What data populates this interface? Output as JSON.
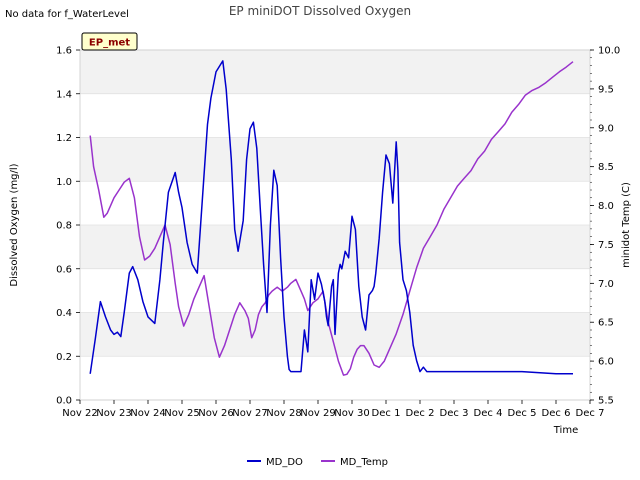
{
  "note": "No data for f_WaterLevel",
  "badge": {
    "label": "EP_met",
    "fill": "#ffffcc",
    "stroke": "#000000",
    "text_color": "#8b0000"
  },
  "chart_data": {
    "type": "line",
    "title": "EP miniDOT Dissolved Oxygen",
    "xlabel": "Time",
    "ylabel": "Dissolved Oxygen (mg/l)",
    "y2label": "minidot Temp (C)",
    "x_tick_labels": [
      "Nov 22",
      "Nov 23",
      "Nov 24",
      "Nov 25",
      "Nov 26",
      "Nov 27",
      "Nov 28",
      "Nov 29",
      "Nov 30",
      "Dec 1",
      "Dec 2",
      "Dec 3",
      "Dec 4",
      "Dec 5",
      "Dec 6",
      "Dec 7"
    ],
    "xlim": [
      0,
      15
    ],
    "ylim": [
      0,
      1.6
    ],
    "y_ticks": [
      0.0,
      0.2,
      0.4,
      0.6,
      0.8,
      1.0,
      1.2,
      1.4,
      1.6
    ],
    "y_tick_labels": [
      "0.0",
      "0.2",
      "0.4",
      "0.6",
      "0.8",
      "1.0",
      "1.2",
      "1.4",
      "1.6"
    ],
    "y2lim": [
      5.5,
      10.0
    ],
    "y2_ticks": [
      5.5,
      6.0,
      6.5,
      7.0,
      7.5,
      8.0,
      8.5,
      9.0,
      9.5,
      10.0
    ],
    "y2_tick_labels": [
      "5.5",
      "6.0",
      "6.5",
      "7.0",
      "7.5",
      "8.0",
      "8.5",
      "9.0",
      "9.5",
      "10.0"
    ],
    "grid_bands": "alternating horizontal bands",
    "legend_position": "bottom-center",
    "series": [
      {
        "name": "MD_DO",
        "axis": "left",
        "color": "#0000cc",
        "x": [
          0.3,
          0.45,
          0.6,
          0.75,
          0.9,
          1.0,
          1.1,
          1.2,
          1.3,
          1.45,
          1.55,
          1.7,
          1.85,
          2.0,
          2.2,
          2.35,
          2.45,
          2.6,
          2.8,
          2.9,
          3.0,
          3.15,
          3.3,
          3.45,
          3.6,
          3.75,
          3.85,
          4.0,
          4.2,
          4.3,
          4.45,
          4.55,
          4.65,
          4.8,
          4.9,
          5.0,
          5.1,
          5.2,
          5.3,
          5.4,
          5.5,
          5.6,
          5.7,
          5.8,
          5.9,
          6.0,
          6.1,
          6.15,
          6.2,
          6.3,
          6.4,
          6.5,
          6.6,
          6.7,
          6.8,
          6.9,
          7.0,
          7.1,
          7.2,
          7.25,
          7.3,
          7.4,
          7.45,
          7.5,
          7.6,
          7.65,
          7.7,
          7.8,
          7.9,
          8.0,
          8.1,
          8.2,
          8.3,
          8.4,
          8.5,
          8.6,
          8.65,
          8.7,
          8.8,
          8.9,
          9.0,
          9.1,
          9.2,
          9.3,
          9.35,
          9.4,
          9.5,
          9.6,
          9.7,
          9.8,
          9.9,
          10.0,
          10.1,
          10.2,
          10.3,
          10.5,
          11.0,
          12.0,
          13.0,
          14.0,
          14.5
        ],
        "y": [
          0.12,
          0.28,
          0.45,
          0.38,
          0.32,
          0.3,
          0.31,
          0.29,
          0.4,
          0.58,
          0.61,
          0.55,
          0.45,
          0.38,
          0.35,
          0.55,
          0.72,
          0.95,
          1.04,
          0.95,
          0.88,
          0.72,
          0.62,
          0.58,
          0.92,
          1.26,
          1.38,
          1.5,
          1.55,
          1.42,
          1.1,
          0.78,
          0.68,
          0.82,
          1.1,
          1.24,
          1.27,
          1.15,
          0.88,
          0.62,
          0.4,
          0.8,
          1.05,
          0.98,
          0.65,
          0.38,
          0.2,
          0.14,
          0.13,
          0.13,
          0.13,
          0.13,
          0.32,
          0.22,
          0.55,
          0.46,
          0.58,
          0.53,
          0.45,
          0.38,
          0.34,
          0.52,
          0.55,
          0.3,
          0.58,
          0.62,
          0.6,
          0.68,
          0.65,
          0.84,
          0.78,
          0.52,
          0.38,
          0.32,
          0.48,
          0.5,
          0.52,
          0.58,
          0.74,
          0.95,
          1.12,
          1.08,
          0.9,
          1.18,
          1.05,
          0.72,
          0.55,
          0.5,
          0.4,
          0.25,
          0.18,
          0.13,
          0.15,
          0.13,
          0.13,
          0.13,
          0.13,
          0.13,
          0.13,
          0.12,
          0.12
        ]
      },
      {
        "name": "MD_Temp",
        "axis": "right",
        "color": "#9933cc",
        "x": [
          0.3,
          0.4,
          0.55,
          0.7,
          0.8,
          0.9,
          1.0,
          1.15,
          1.3,
          1.45,
          1.6,
          1.75,
          1.9,
          2.05,
          2.2,
          2.35,
          2.5,
          2.65,
          2.8,
          2.9,
          3.05,
          3.2,
          3.35,
          3.5,
          3.65,
          3.8,
          3.95,
          4.1,
          4.25,
          4.4,
          4.55,
          4.7,
          4.85,
          4.95,
          5.05,
          5.15,
          5.25,
          5.35,
          5.45,
          5.55,
          5.65,
          5.8,
          5.95,
          6.1,
          6.2,
          6.35,
          6.5,
          6.6,
          6.7,
          6.85,
          7.0,
          7.15,
          7.3,
          7.45,
          7.6,
          7.75,
          7.85,
          7.95,
          8.05,
          8.15,
          8.25,
          8.35,
          8.5,
          8.65,
          8.8,
          8.95,
          9.1,
          9.3,
          9.5,
          9.7,
          9.9,
          10.1,
          10.3,
          10.5,
          10.7,
          10.9,
          11.1,
          11.3,
          11.5,
          11.7,
          11.9,
          12.1,
          12.3,
          12.5,
          12.7,
          12.9,
          13.1,
          13.3,
          13.5,
          13.7,
          13.9,
          14.1,
          14.3,
          14.5
        ],
        "y": [
          8.9,
          8.5,
          8.2,
          7.85,
          7.9,
          8.0,
          8.1,
          8.2,
          8.3,
          8.35,
          8.1,
          7.6,
          7.3,
          7.35,
          7.45,
          7.6,
          7.75,
          7.5,
          7.0,
          6.7,
          6.45,
          6.6,
          6.8,
          6.95,
          7.1,
          6.7,
          6.3,
          6.05,
          6.2,
          6.4,
          6.6,
          6.75,
          6.65,
          6.55,
          6.3,
          6.4,
          6.6,
          6.7,
          6.75,
          6.85,
          6.9,
          6.95,
          6.9,
          6.95,
          7.0,
          7.05,
          6.9,
          6.8,
          6.65,
          6.75,
          6.8,
          6.9,
          6.5,
          6.25,
          6.0,
          5.82,
          5.83,
          5.9,
          6.05,
          6.15,
          6.2,
          6.2,
          6.1,
          5.95,
          5.92,
          6.0,
          6.15,
          6.35,
          6.6,
          6.9,
          7.2,
          7.45,
          7.6,
          7.75,
          7.95,
          8.1,
          8.25,
          8.35,
          8.45,
          8.6,
          8.7,
          8.85,
          8.95,
          9.05,
          9.2,
          9.3,
          9.42,
          9.48,
          9.52,
          9.58,
          9.65,
          9.72,
          9.78,
          9.85
        ]
      }
    ]
  }
}
